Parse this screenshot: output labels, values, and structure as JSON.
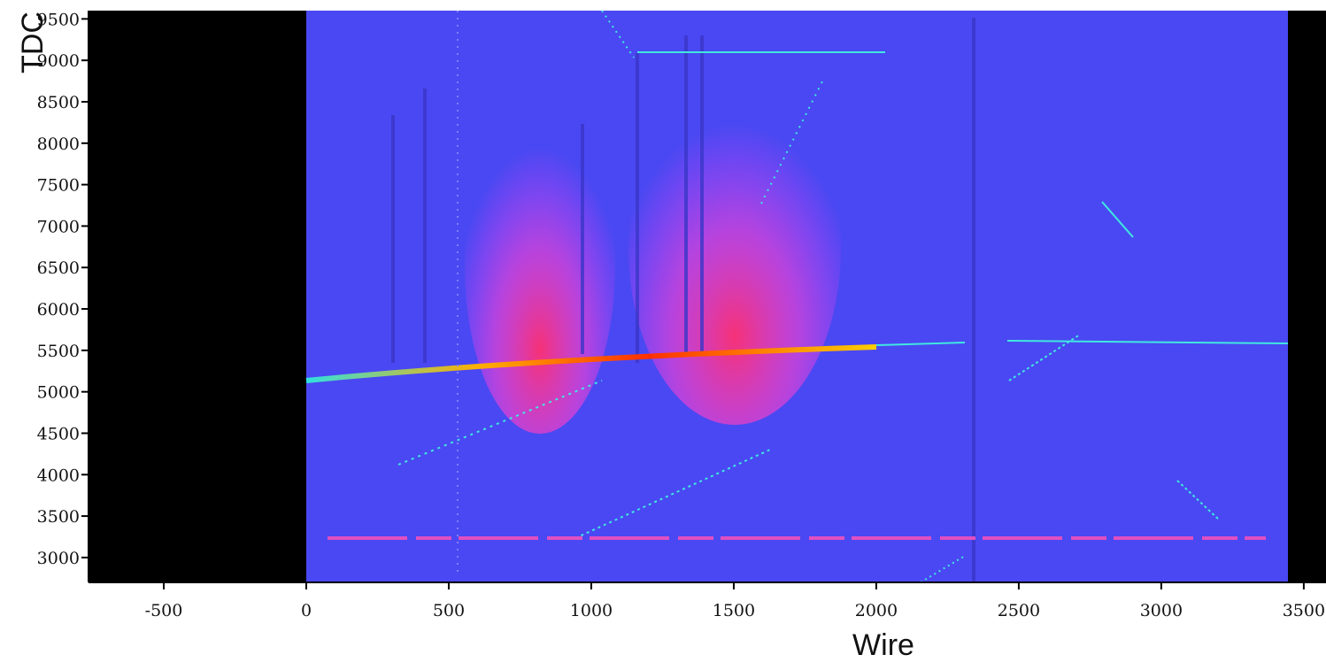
{
  "chart_data": {
    "type": "image",
    "x_label": "Wire",
    "y_label": "TDC",
    "xlim": [
      -764,
      3578
    ],
    "ylim": [
      2700,
      9600
    ],
    "xticks": [
      -500,
      0,
      500,
      1000,
      1500,
      2000,
      2500,
      3000,
      3500
    ],
    "yticks": [
      3000,
      3500,
      4000,
      4500,
      5000,
      5500,
      6000,
      6500,
      7000,
      7500,
      8000,
      8500,
      9000,
      9500
    ]
  }
}
